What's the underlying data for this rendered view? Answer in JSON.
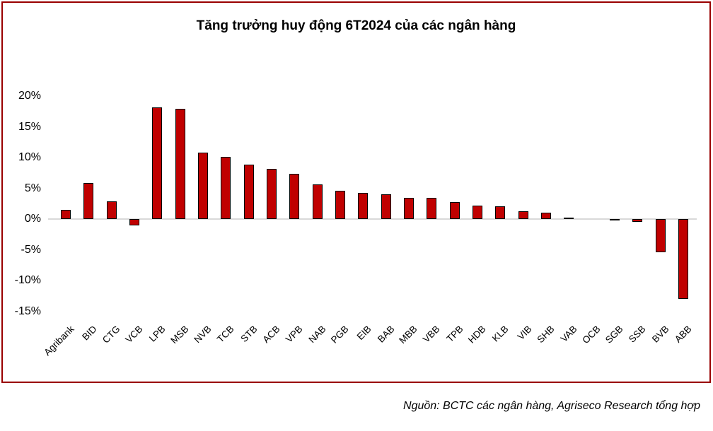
{
  "chart_data": {
    "type": "bar",
    "title": "Tăng trưởng huy động 6T2024 của các ngân hàng",
    "categories": [
      "Agribank",
      "BID",
      "CTG",
      "VCB",
      "LPB",
      "MSB",
      "NVB",
      "TCB",
      "STB",
      "ACB",
      "VPB",
      "NAB",
      "PGB",
      "EIB",
      "BAB",
      "MBB",
      "VBB",
      "TPB",
      "HDB",
      "KLB",
      "VIB",
      "SHB",
      "VAB",
      "OCB",
      "SGB",
      "SSB",
      "BVB",
      "ABB"
    ],
    "values": [
      1.5,
      5.9,
      2.9,
      -1.0,
      18.2,
      17.9,
      10.8,
      10.1,
      8.9,
      8.2,
      7.3,
      5.6,
      4.6,
      4.3,
      4.0,
      3.4,
      3.4,
      2.8,
      2.2,
      2.1,
      1.3,
      1.0,
      0.2,
      0.0,
      -0.1,
      -0.5,
      -5.4,
      -13.0
    ],
    "unit": "%",
    "xlabel": "",
    "ylabel": "",
    "ylim": [
      -15,
      20
    ],
    "yticks": [
      {
        "label": "20%",
        "value": 20
      },
      {
        "label": "15%",
        "value": 15
      },
      {
        "label": "10%",
        "value": 10
      },
      {
        "label": "5%",
        "value": 5
      },
      {
        "label": "0%",
        "value": 0
      },
      {
        "label": "-5%",
        "value": -5
      },
      {
        "label": "-10%",
        "value": -10
      },
      {
        "label": "-15%",
        "value": -15
      }
    ],
    "grid": "zero-line-only",
    "legend": "none",
    "xlabel_rotation_deg": 45,
    "colors": {
      "bar_fill": "#C00000",
      "bar_border": "#000000",
      "frame_border": "#990000",
      "zero_line": "#D9D9D9",
      "text": "#000000"
    }
  },
  "source_note": "Nguồn: BCTC các ngân hàng, Agriseco Research tổng hợp"
}
